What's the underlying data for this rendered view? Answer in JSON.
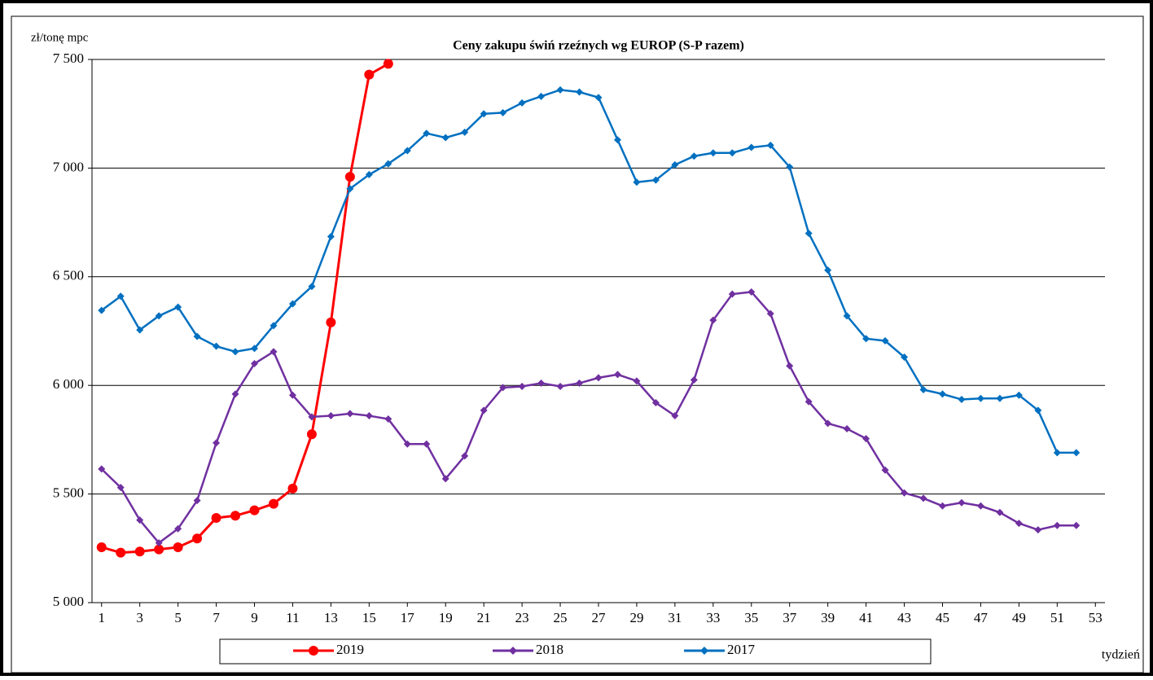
{
  "chart_data": {
    "type": "line",
    "title": "Ceny zakupu świń rzeźnych  wg EUROP (S-P razem)",
    "y_label": "zł/tonę  mpc",
    "x_label": "tydzień",
    "xlim": [
      0.5,
      53.5
    ],
    "xticks": [
      1,
      3,
      5,
      7,
      9,
      11,
      13,
      15,
      17,
      19,
      21,
      23,
      25,
      27,
      29,
      31,
      33,
      35,
      37,
      39,
      41,
      43,
      45,
      47,
      49,
      51,
      53
    ],
    "ylim": [
      5000,
      7500
    ],
    "yticks": [
      {
        "value": 5000,
        "label": "5 000"
      },
      {
        "value": 5500,
        "label": "5 500"
      },
      {
        "value": 6000,
        "label": "6 000"
      },
      {
        "value": 6500,
        "label": "6 500"
      },
      {
        "value": 7000,
        "label": "7 000"
      },
      {
        "value": 7500,
        "label": "7 500"
      }
    ],
    "grid": true,
    "x": [
      1,
      2,
      3,
      4,
      5,
      6,
      7,
      8,
      9,
      10,
      11,
      12,
      13,
      14,
      15,
      16,
      17,
      18,
      19,
      20,
      21,
      22,
      23,
      24,
      25,
      26,
      27,
      28,
      29,
      30,
      31,
      32,
      33,
      34,
      35,
      36,
      37,
      38,
      39,
      40,
      41,
      42,
      43,
      44,
      45,
      46,
      47,
      48,
      49,
      50,
      51,
      52
    ],
    "series": [
      {
        "name": "2019",
        "color": "#ff0000",
        "marker": "circle",
        "values": [
          5255,
          5230,
          5235,
          5245,
          5255,
          5295,
          5390,
          5400,
          5425,
          5455,
          5525,
          5775,
          6290,
          6960,
          7430,
          7480,
          null,
          null,
          null,
          null,
          null,
          null,
          null,
          null,
          null,
          null,
          null,
          null,
          null,
          null,
          null,
          null,
          null,
          null,
          null,
          null,
          null,
          null,
          null,
          null,
          null,
          null,
          null,
          null,
          null,
          null,
          null,
          null,
          null,
          null,
          null,
          null
        ]
      },
      {
        "name": "2018",
        "color": "#7030a0",
        "marker": "diamond",
        "values": [
          5615,
          5530,
          5380,
          5275,
          5340,
          5470,
          5735,
          5960,
          6100,
          6155,
          5955,
          5855,
          5860,
          5870,
          5860,
          5845,
          5730,
          5730,
          5570,
          5675,
          5885,
          5990,
          5995,
          6010,
          5995,
          6010,
          6035,
          6050,
          6020,
          5920,
          5860,
          6025,
          6300,
          6420,
          6430,
          6330,
          6090,
          5925,
          5825,
          5800,
          5755,
          5610,
          5505,
          5480,
          5445,
          5460,
          5445,
          5415,
          5365,
          5335,
          5355,
          5355
        ]
      },
      {
        "name": "2017",
        "color": "#0070c0",
        "marker": "diamond",
        "values": [
          6345,
          6410,
          6255,
          6320,
          6360,
          6225,
          6180,
          6155,
          6170,
          6275,
          6375,
          6455,
          6685,
          6905,
          6970,
          7020,
          7080,
          7160,
          7140,
          7165,
          7250,
          7255,
          7300,
          7330,
          7360,
          7350,
          7325,
          7130,
          6935,
          6945,
          7015,
          7055,
          7070,
          7070,
          7095,
          7105,
          7005,
          6700,
          6530,
          6320,
          6215,
          6205,
          6130,
          5980,
          5960,
          5935,
          5940,
          5940,
          5955,
          5885,
          5690,
          5690
        ]
      }
    ]
  }
}
